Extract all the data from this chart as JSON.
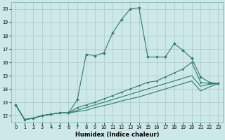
{
  "xlabel": "Humidex (Indice chaleur)",
  "bg_color": "#cce8e8",
  "grid_color": "#b0cccc",
  "line_color": "#2e7d6e",
  "xlim_min": -0.5,
  "xlim_max": 23.5,
  "ylim_min": 11.5,
  "ylim_max": 20.5,
  "yticks": [
    12,
    13,
    14,
    15,
    16,
    17,
    18,
    19,
    20
  ],
  "xticks": [
    0,
    1,
    2,
    3,
    4,
    5,
    6,
    7,
    8,
    9,
    10,
    11,
    12,
    13,
    14,
    15,
    16,
    17,
    18,
    19,
    20,
    21,
    22,
    23
  ],
  "series1_x": [
    0,
    1,
    2,
    3,
    4,
    5,
    6,
    7,
    8,
    9,
    10,
    11,
    12,
    13,
    14,
    15,
    16,
    17,
    18,
    19,
    20,
    21,
    22,
    23
  ],
  "series1_y": [
    12.8,
    11.7,
    11.8,
    12.0,
    12.1,
    12.2,
    12.2,
    13.2,
    16.6,
    16.5,
    16.7,
    18.2,
    19.2,
    20.0,
    20.1,
    16.4,
    16.4,
    16.4,
    17.4,
    16.9,
    16.3,
    14.9,
    14.5,
    14.4
  ],
  "series2_x": [
    0,
    1,
    2,
    3,
    4,
    5,
    6,
    7,
    8,
    9,
    10,
    11,
    12,
    13,
    14,
    15,
    16,
    17,
    18,
    19,
    20,
    21,
    22,
    23
  ],
  "series2_y": [
    12.8,
    11.7,
    11.8,
    12.0,
    12.1,
    12.2,
    12.2,
    12.6,
    12.8,
    13.0,
    13.25,
    13.5,
    13.75,
    14.0,
    14.25,
    14.5,
    14.6,
    14.9,
    15.2,
    15.5,
    16.0,
    14.5,
    14.4,
    14.4
  ],
  "series3_x": [
    0,
    1,
    2,
    3,
    4,
    5,
    6,
    7,
    8,
    9,
    10,
    11,
    12,
    13,
    14,
    15,
    16,
    17,
    18,
    19,
    20,
    21,
    22,
    23
  ],
  "series3_y": [
    12.8,
    11.7,
    11.8,
    12.0,
    12.1,
    12.2,
    12.2,
    12.4,
    12.6,
    12.8,
    13.0,
    13.2,
    13.4,
    13.6,
    13.8,
    14.0,
    14.2,
    14.4,
    14.6,
    14.8,
    15.0,
    14.2,
    14.35,
    14.4
  ],
  "series4_x": [
    0,
    1,
    2,
    3,
    4,
    5,
    6,
    7,
    8,
    9,
    10,
    11,
    12,
    13,
    14,
    15,
    16,
    17,
    18,
    19,
    20,
    21,
    22,
    23
  ],
  "series4_y": [
    12.8,
    11.7,
    11.8,
    12.0,
    12.1,
    12.2,
    12.2,
    12.3,
    12.4,
    12.6,
    12.75,
    12.9,
    13.1,
    13.25,
    13.4,
    13.6,
    13.8,
    14.0,
    14.2,
    14.4,
    14.6,
    13.85,
    14.15,
    14.4
  ]
}
